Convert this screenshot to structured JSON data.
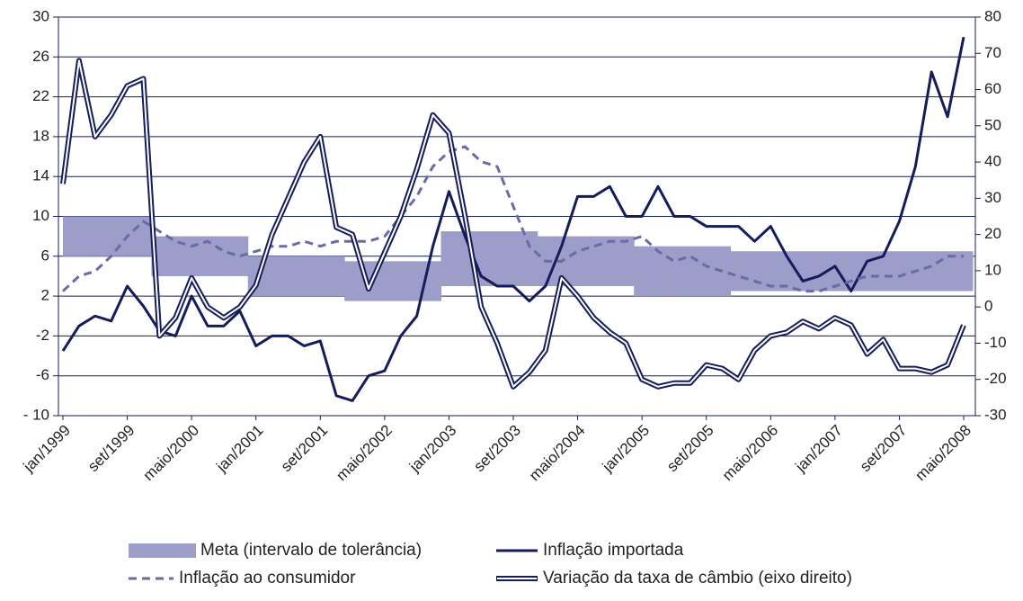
{
  "chart_data": {
    "type": "line",
    "categories": [
      "jan/1999",
      null,
      null,
      null,
      "set/1999",
      null,
      null,
      null,
      "maio/2000",
      null,
      null,
      null,
      "jan/2001",
      null,
      null,
      null,
      "set/2001",
      null,
      null,
      null,
      "maio/2002",
      null,
      null,
      null,
      "jan/2003",
      null,
      null,
      null,
      "set/2003",
      null,
      null,
      null,
      "maio/2004",
      null,
      null,
      null,
      "jan/2005",
      null,
      null,
      null,
      "set/2005",
      null,
      null,
      null,
      "maio/2006",
      null,
      null,
      null,
      "jan/2007",
      null,
      null,
      null,
      "set/2007",
      null,
      null,
      null,
      "maio/2008"
    ],
    "ylim": [
      -10,
      30
    ],
    "yticks": [
      {
        "value": -10,
        "label": "- 10"
      },
      -6,
      -2,
      2,
      6,
      10,
      14,
      18,
      22,
      26,
      30
    ],
    "y2lim": [
      -30,
      80
    ],
    "y2ticks": [
      -30,
      -20,
      -10,
      0,
      10,
      20,
      30,
      40,
      50,
      60,
      70,
      80
    ],
    "grid": true,
    "series": [
      {
        "name": "Meta (intervalo de tolerância)",
        "color": "#9d9dc9",
        "style": "band",
        "low": [
          6,
          6,
          6,
          6,
          6,
          6,
          4,
          4,
          4,
          4,
          4,
          4,
          2,
          2,
          2,
          2,
          2,
          2,
          1.5,
          1.5,
          1.5,
          1.5,
          1.5,
          1.5,
          3,
          3,
          3,
          3,
          3,
          3,
          3,
          3,
          3,
          3,
          3,
          3,
          2,
          2,
          2,
          2,
          2,
          2,
          2.5,
          2.5,
          2.5,
          2.5,
          2.5,
          2.5,
          2.5,
          2.5,
          2.5,
          2.5,
          2.5,
          2.5,
          2.5,
          2.5,
          2.5
        ],
        "high": [
          10,
          10,
          10,
          10,
          10,
          10,
          8,
          8,
          8,
          8,
          8,
          8,
          6,
          6,
          6,
          6,
          6,
          6,
          5.5,
          5.5,
          5.5,
          5.5,
          5.5,
          5.5,
          8.5,
          8.5,
          8.5,
          8.5,
          8.5,
          8.5,
          8,
          8,
          8,
          8,
          8,
          8,
          7,
          7,
          7,
          7,
          7,
          7,
          6.5,
          6.5,
          6.5,
          6.5,
          6.5,
          6.5,
          6.5,
          6.5,
          6.5,
          6.5,
          6.5,
          6.5,
          6.5,
          6.5,
          6.5
        ]
      },
      {
        "name": "Inflação importada",
        "color": "#141c5c",
        "style": "solid",
        "values": [
          -3.5,
          -1,
          0,
          -0.5,
          3,
          1,
          -1.5,
          -2,
          2,
          -1,
          -1,
          0.5,
          -3,
          -2,
          -2,
          -3,
          -2.5,
          -8,
          -8.5,
          -6,
          -5.5,
          -2,
          0,
          7,
          12.5,
          8,
          4,
          3,
          3,
          1.5,
          3,
          7,
          12,
          12,
          13,
          10,
          10,
          13,
          10,
          10,
          9,
          9,
          9,
          7.5,
          9,
          6,
          3.5,
          4,
          5,
          2.5,
          5.5,
          6,
          9.5,
          15,
          24.5,
          20,
          28
        ]
      },
      {
        "name": "Inflação ao consumidor",
        "color": "#6a6aa6",
        "style": "dashed",
        "values": [
          2.5,
          4,
          4.5,
          6,
          8,
          9.5,
          8.5,
          7.5,
          7,
          7.5,
          6.5,
          6,
          6.5,
          7,
          7,
          7.5,
          7,
          7.5,
          7.5,
          7.5,
          8,
          10,
          12,
          15,
          16.5,
          17,
          15.5,
          15,
          11,
          7,
          5.5,
          5.5,
          6.5,
          7,
          7.5,
          7.5,
          8,
          6.5,
          5.5,
          6,
          5,
          4.5,
          4,
          3.5,
          3,
          3,
          2.5,
          2.5,
          3,
          3.5,
          4,
          4,
          4,
          4.5,
          5,
          6,
          6
        ]
      },
      {
        "name": "Variação da taxa de câmbio (eixo direito)",
        "color": "#141c5c",
        "style": "double",
        "axis": "y2",
        "values": [
          34,
          68,
          47,
          53,
          61,
          63,
          -8,
          -3,
          8,
          0,
          -3,
          0,
          6,
          20,
          30,
          40,
          47,
          22,
          20,
          5,
          15,
          25,
          38,
          53,
          48,
          25,
          0,
          -10,
          -22,
          -18,
          -12,
          8,
          3,
          -3,
          -7,
          -10,
          -20,
          -22,
          -21,
          -21,
          -16,
          -17,
          -20,
          -12,
          -8,
          -7,
          -4,
          -6,
          -3,
          -5,
          -13,
          -9,
          -17,
          -17,
          -18,
          -16,
          -5
        ]
      }
    ]
  }
}
